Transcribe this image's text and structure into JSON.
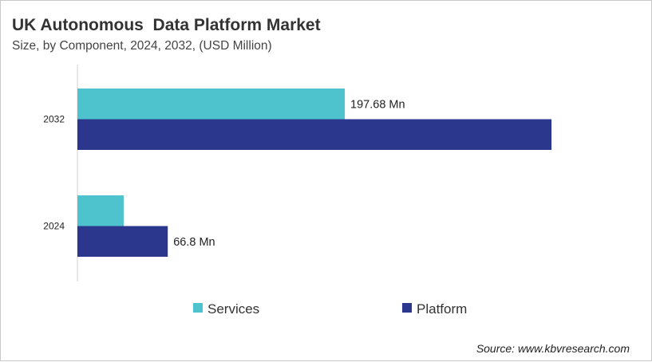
{
  "chart_data": {
    "type": "bar",
    "orientation": "horizontal",
    "title": "UK Autonomous  Data Platform Market",
    "subtitle": "Size, by Component, 2024, 2032, (USD Million)",
    "categories": [
      "2032",
      "2024"
    ],
    "series": [
      {
        "name": "Services",
        "color": "#4fc3cd",
        "values": [
          197.68,
          34.2
        ],
        "labels": [
          "197.68 Mn",
          ""
        ]
      },
      {
        "name": "Platform",
        "color": "#2b378c",
        "values": [
          350.5,
          66.8
        ],
        "labels": [
          "",
          "66.8 Mn"
        ]
      }
    ],
    "xlim": [
      0,
      413
    ],
    "grid": false,
    "legend": "bottom",
    "source": "Source: www.kbvresearch.com"
  }
}
